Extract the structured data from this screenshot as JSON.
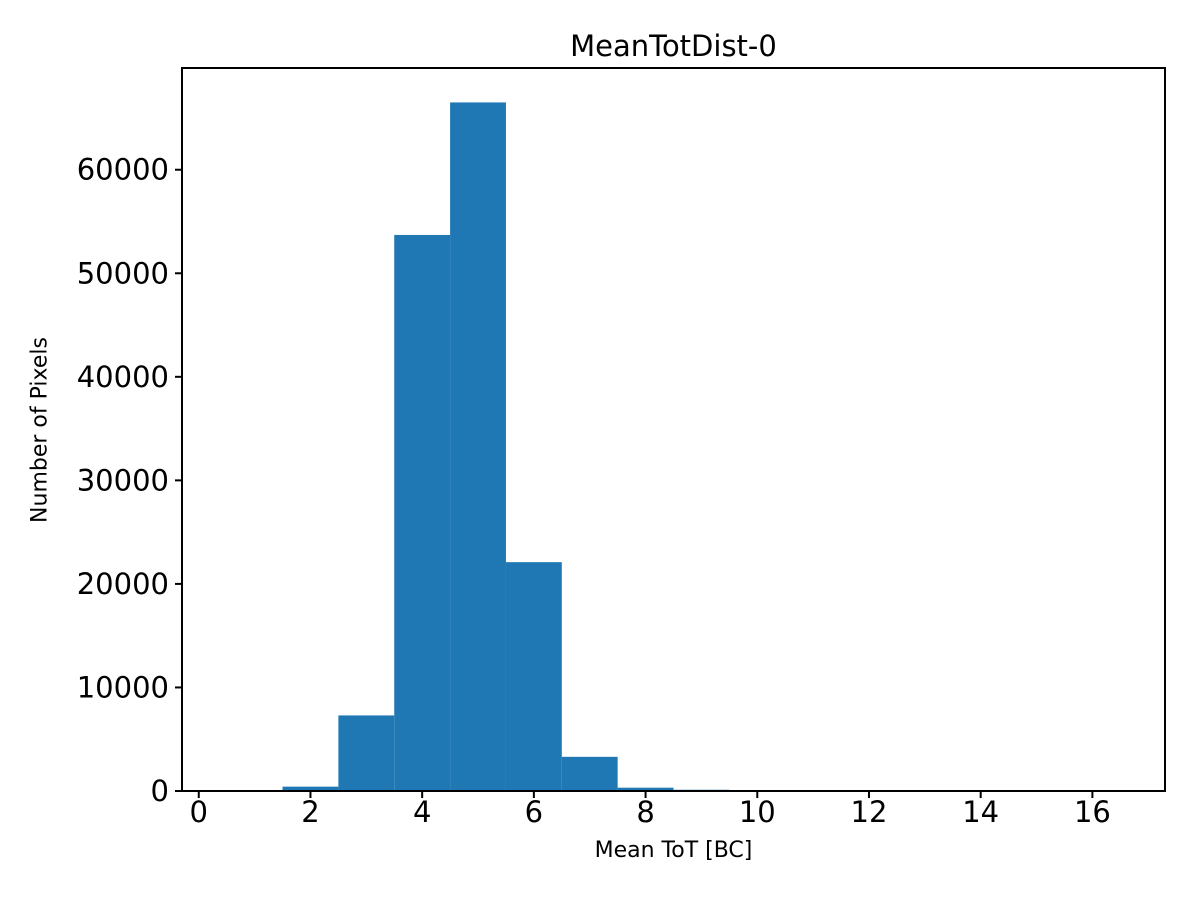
{
  "figure": {
    "background": "#ffffff"
  },
  "chart_data": {
    "type": "bar",
    "subtype": "histogram",
    "title": "MeanTotDist-0",
    "xlabel": "Mean ToT [BC]",
    "ylabel": "Number of Pixels",
    "bar_color": "#1f77b4",
    "axis_color": "#000000",
    "grid": false,
    "legend": "none",
    "bin_width": 1,
    "bin_centers": [
      2,
      3,
      4,
      5,
      6,
      7,
      8,
      9
    ],
    "values": [
      420,
      7300,
      53700,
      66500,
      22100,
      3300,
      320,
      120
    ],
    "xticks": [
      0,
      2,
      4,
      6,
      8,
      10,
      12,
      14,
      16
    ],
    "yticks": [
      0,
      10000,
      20000,
      30000,
      40000,
      50000,
      60000
    ],
    "xlim": [
      -0.3,
      17.3
    ],
    "ylim": [
      0,
      69825
    ]
  }
}
